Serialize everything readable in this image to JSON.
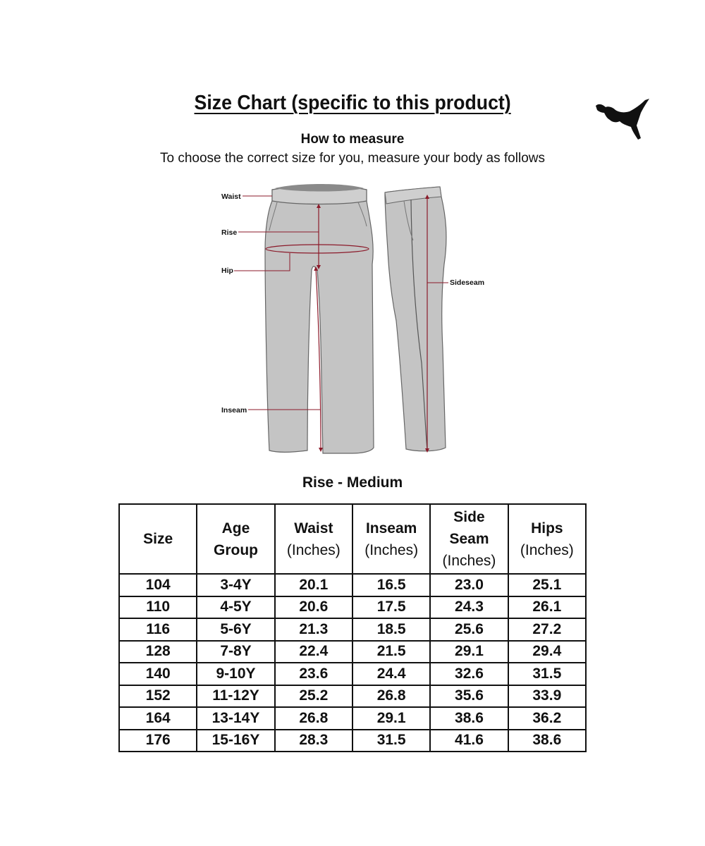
{
  "title": "Size Chart (specific to this product)",
  "brand_logo": "puma-cat-logo",
  "how_to_measure": "How to measure",
  "instructions": "To choose the correct size for you, measure your body as follows",
  "diagram": {
    "labels": {
      "waist": "Waist",
      "rise": "Rise",
      "hip": "Hip",
      "inseam": "Inseam",
      "sideseam": "Sideseam"
    },
    "fill_color": "#c4c4c4",
    "measure_color": "#8b1a2a"
  },
  "rise_label": "Rise - Medium",
  "table": {
    "headers": [
      {
        "line1": "Size",
        "line2": "",
        "line3": ""
      },
      {
        "line1": "Age",
        "line2": "Group",
        "line3": ""
      },
      {
        "line1": "Waist",
        "line2": "(Inches)",
        "line3": ""
      },
      {
        "line1": "Inseam",
        "line2": "(Inches)",
        "line3": ""
      },
      {
        "line1": "Side",
        "line2": "Seam",
        "line3": "(Inches)"
      },
      {
        "line1": "Hips",
        "line2": "(Inches)",
        "line3": ""
      }
    ],
    "rows": [
      [
        "104",
        "3-4Y",
        "20.1",
        "16.5",
        "23.0",
        "25.1"
      ],
      [
        "110",
        "4-5Y",
        "20.6",
        "17.5",
        "24.3",
        "26.1"
      ],
      [
        "116",
        "5-6Y",
        "21.3",
        "18.5",
        "25.6",
        "27.2"
      ],
      [
        "128",
        "7-8Y",
        "22.4",
        "21.5",
        "29.1",
        "29.4"
      ],
      [
        "140",
        "9-10Y",
        "23.6",
        "24.4",
        "32.6",
        "31.5"
      ],
      [
        "152",
        "11-12Y",
        "25.2",
        "26.8",
        "35.6",
        "33.9"
      ],
      [
        "164",
        "13-14Y",
        "26.8",
        "29.1",
        "38.6",
        "36.2"
      ],
      [
        "176",
        "15-16Y",
        "28.3",
        "31.5",
        "41.6",
        "38.6"
      ]
    ]
  }
}
